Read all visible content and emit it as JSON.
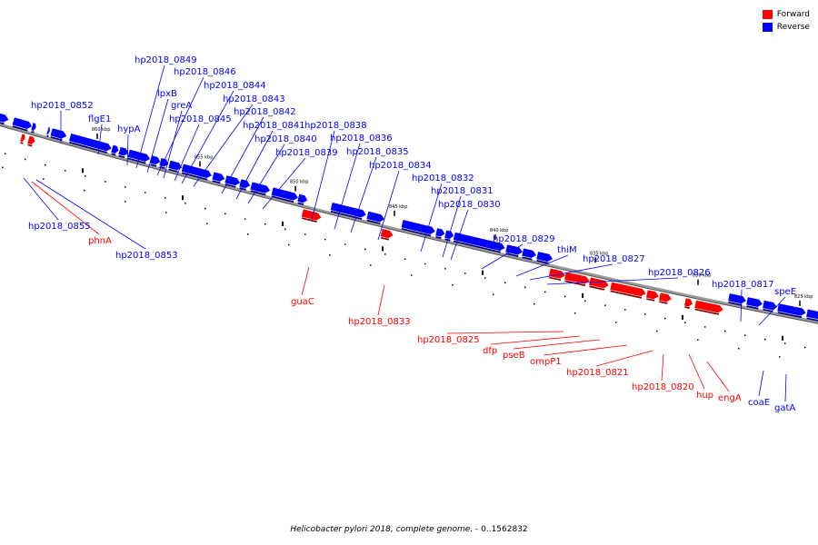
{
  "legend": {
    "items": [
      {
        "label": "Forward",
        "color": "#ff0000"
      },
      {
        "label": "Reverse",
        "color": "#0000ff"
      }
    ]
  },
  "caption": {
    "organism": "Helicobacter pylori 2018, complete genome.",
    "range": " - 0..1562832"
  },
  "colors": {
    "forward": "#ff0000",
    "reverse": "#0000ff",
    "backbone": "#888888"
  },
  "tick_labels": [
    "860 kbp",
    "855 kbp",
    "850 kbp",
    "845 kbp",
    "840 kbp",
    "835 kbp",
    "830 kbp",
    "825 kbp"
  ],
  "genes": [
    {
      "name": "hp2018_0852",
      "strand": "reverse"
    },
    {
      "name": "flgE1",
      "strand": "reverse"
    },
    {
      "name": "hypA",
      "strand": "reverse"
    },
    {
      "name": "hp2018_0849",
      "strand": "reverse"
    },
    {
      "name": "lpxB",
      "strand": "reverse"
    },
    {
      "name": "hp2018_0846",
      "strand": "reverse"
    },
    {
      "name": "greA",
      "strand": "reverse"
    },
    {
      "name": "hp2018_0845",
      "strand": "reverse"
    },
    {
      "name": "hp2018_0844",
      "strand": "reverse"
    },
    {
      "name": "hp2018_0843",
      "strand": "reverse"
    },
    {
      "name": "hp2018_0842",
      "strand": "reverse"
    },
    {
      "name": "hp2018_0841",
      "strand": "reverse"
    },
    {
      "name": "hp2018_0840",
      "strand": "reverse"
    },
    {
      "name": "hp2018_0839",
      "strand": "reverse"
    },
    {
      "name": "hp2018_0838",
      "strand": "reverse"
    },
    {
      "name": "hp2018_0836",
      "strand": "reverse"
    },
    {
      "name": "hp2018_0835",
      "strand": "reverse"
    },
    {
      "name": "hp2018_0834",
      "strand": "reverse"
    },
    {
      "name": "hp2018_0832",
      "strand": "reverse"
    },
    {
      "name": "hp2018_0831",
      "strand": "reverse"
    },
    {
      "name": "hp2018_0830",
      "strand": "reverse"
    },
    {
      "name": "hp2018_0829",
      "strand": "reverse"
    },
    {
      "name": "thiM",
      "strand": "reverse"
    },
    {
      "name": "hp2018_0827",
      "strand": "reverse"
    },
    {
      "name": "hp2018_0826",
      "strand": "reverse"
    },
    {
      "name": "hp2018_0817",
      "strand": "reverse"
    },
    {
      "name": "speE",
      "strand": "reverse"
    },
    {
      "name": "hp2018_0855",
      "strand": "reverse"
    },
    {
      "name": "hp2018_0853",
      "strand": "reverse"
    },
    {
      "name": "coaE",
      "strand": "reverse"
    },
    {
      "name": "gatA",
      "strand": "reverse"
    },
    {
      "name": "phnA",
      "strand": "forward"
    },
    {
      "name": "guaC",
      "strand": "forward"
    },
    {
      "name": "hp2018_0833",
      "strand": "forward"
    },
    {
      "name": "hp2018_0825",
      "strand": "forward"
    },
    {
      "name": "dfp",
      "strand": "forward"
    },
    {
      "name": "pseB",
      "strand": "forward"
    },
    {
      "name": "ompP1",
      "strand": "forward"
    },
    {
      "name": "hp2018_0821",
      "strand": "forward"
    },
    {
      "name": "hp2018_0820",
      "strand": "forward"
    },
    {
      "name": "hup",
      "strand": "forward"
    },
    {
      "name": "engA",
      "strand": "forward"
    }
  ]
}
